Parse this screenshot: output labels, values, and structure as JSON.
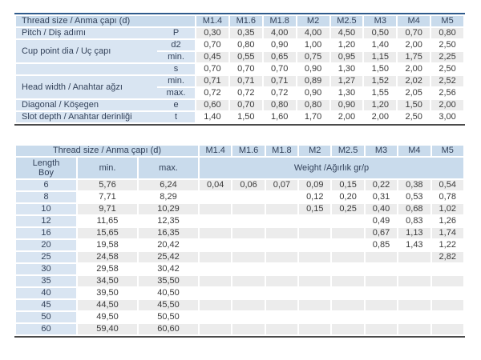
{
  "colors": {
    "header_blue": "#c9dbec",
    "label_blue": "#d9e5f2",
    "stripe_gray": "#ececec",
    "row_white": "#ffffff",
    "table_top_border": "#2f5b8d",
    "table_bottom_border": "#4b4b4b",
    "label_text": "#33425a",
    "value_text": "#3a3a3a"
  },
  "size_columns": [
    "M1.4",
    "M1.6",
    "M1.8",
    "M2",
    "M2.5",
    "M3",
    "M4",
    "M5"
  ],
  "table1": {
    "header_label": "Thread size / Anma çapı (d)",
    "rows": [
      {
        "label": "Pitch / Diş adımı",
        "rowspan": 1,
        "symbol": "P",
        "values": [
          "0,30",
          "0,35",
          "4,00",
          "4,00",
          "4,50",
          "0,50",
          "0,70",
          "0,80"
        ]
      },
      {
        "label": "Cup point dia / Uç çapı",
        "rowspan": 2,
        "symbol": "d2",
        "values": [
          "0,70",
          "0,80",
          "0,90",
          "1,00",
          "1,20",
          "1,40",
          "2,00",
          "2,50"
        ]
      },
      {
        "symbol": "min.",
        "values": [
          "0,45",
          "0,55",
          "0,65",
          "0,75",
          "0,95",
          "1,15",
          "1,75",
          "2,25"
        ]
      },
      {
        "label": "",
        "rowspan": 1,
        "symbol": "s",
        "values": [
          "0,70",
          "0,70",
          "0,70",
          "0,90",
          "1,30",
          "1,50",
          "2,00",
          "2,50"
        ]
      },
      {
        "label": "Head width / Anahtar ağzı",
        "rowspan": 2,
        "symbol": "min.",
        "values": [
          "0,71",
          "0,71",
          "0,71",
          "0,89",
          "1,27",
          "1,52",
          "2,02",
          "2,52"
        ]
      },
      {
        "symbol": "max.",
        "values": [
          "0,72",
          "0,72",
          "0,72",
          "0,90",
          "1,30",
          "1,55",
          "2,05",
          "2,56"
        ]
      },
      {
        "label": "Diagonal / Köşegen",
        "rowspan": 1,
        "symbol": "e",
        "values": [
          "0,60",
          "0,70",
          "0,80",
          "0,80",
          "0,90",
          "1,20",
          "1,50",
          "2,00"
        ]
      },
      {
        "label": "Slot depth / Anahtar derinliği",
        "rowspan": 1,
        "symbol": "t",
        "values": [
          "1,40",
          "1,50",
          "1,60",
          "1,70",
          "2,00",
          "2,00",
          "2,50",
          "3,00"
        ]
      }
    ]
  },
  "table2": {
    "header_label": "Thread size / Anma çapı (d)",
    "length_header_line1": "Length",
    "length_header_line2": "Boy",
    "min_header": "min.",
    "max_header": "max.",
    "weight_header": "Weight /Ağırlık gr/p",
    "rows": [
      {
        "length": "6",
        "min": "5,76",
        "max": "6,24",
        "weights": [
          "0,04",
          "0,06",
          "0,07",
          "0,09",
          "0,15",
          "0,22",
          "0,38",
          "0,54"
        ]
      },
      {
        "length": "8",
        "min": "7,71",
        "max": "8,29",
        "weights": [
          "",
          "",
          "",
          "0,12",
          "0,20",
          "0,31",
          "0,53",
          "0,78"
        ]
      },
      {
        "length": "10",
        "min": "9,71",
        "max": "10,29",
        "weights": [
          "",
          "",
          "",
          "0,15",
          "0,25",
          "0,40",
          "0,68",
          "1,02"
        ]
      },
      {
        "length": "12",
        "min": "11,65",
        "max": "12,35",
        "weights": [
          "",
          "",
          "",
          "",
          "",
          "0,49",
          "0,83",
          "1,26"
        ]
      },
      {
        "length": "16",
        "min": "15,65",
        "max": "16,35",
        "weights": [
          "",
          "",
          "",
          "",
          "",
          "0,67",
          "1,13",
          "1,74"
        ]
      },
      {
        "length": "20",
        "min": "19,58",
        "max": "20,42",
        "weights": [
          "",
          "",
          "",
          "",
          "",
          "0,85",
          "1,43",
          "1,22"
        ]
      },
      {
        "length": "25",
        "min": "24,58",
        "max": "25,42",
        "weights": [
          "",
          "",
          "",
          "",
          "",
          "",
          "",
          "2,82"
        ]
      },
      {
        "length": "30",
        "min": "29,58",
        "max": "30,42",
        "weights": [
          "",
          "",
          "",
          "",
          "",
          "",
          "",
          ""
        ]
      },
      {
        "length": "35",
        "min": "34,50",
        "max": "35,50",
        "weights": [
          "",
          "",
          "",
          "",
          "",
          "",
          "",
          ""
        ]
      },
      {
        "length": "40",
        "min": "39,50",
        "max": "40,50",
        "weights": [
          "",
          "",
          "",
          "",
          "",
          "",
          "",
          ""
        ]
      },
      {
        "length": "45",
        "min": "44,50",
        "max": "45,50",
        "weights": [
          "",
          "",
          "",
          "",
          "",
          "",
          "",
          ""
        ]
      },
      {
        "length": "50",
        "min": "49,50",
        "max": "50,50",
        "weights": [
          "",
          "",
          "",
          "",
          "",
          "",
          "",
          ""
        ]
      },
      {
        "length": "60",
        "min": "59,40",
        "max": "60,60",
        "weights": [
          "",
          "",
          "",
          "",
          "",
          "",
          "",
          ""
        ]
      }
    ]
  }
}
